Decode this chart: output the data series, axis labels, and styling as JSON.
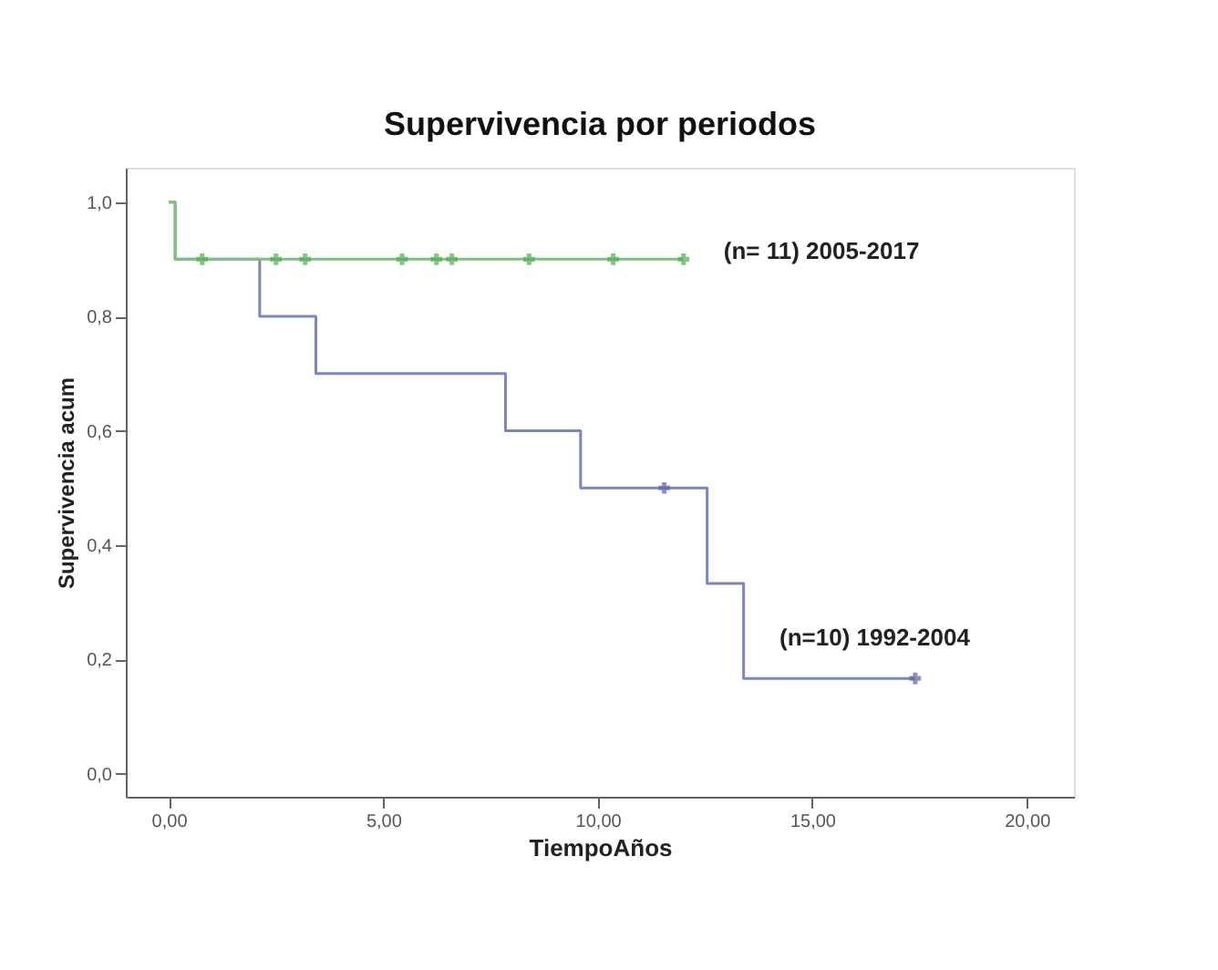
{
  "chart_data": {
    "type": "step",
    "title": "Supervivencia por periodos",
    "xlabel": "TiempoAños",
    "ylabel": "Supervivencia acum",
    "xlim": [
      -1,
      21.1
    ],
    "ylim": [
      -0.04,
      1.06
    ],
    "xticks": [
      {
        "value": 0,
        "label": "0,00"
      },
      {
        "value": 5,
        "label": "5,00"
      },
      {
        "value": 10,
        "label": "10,00"
      },
      {
        "value": 15,
        "label": "15,00"
      },
      {
        "value": 20,
        "label": "20,00"
      }
    ],
    "yticks": [
      {
        "value": 0,
        "label": "0,0"
      },
      {
        "value": 0.2,
        "label": "0,2"
      },
      {
        "value": 0.4,
        "label": "0,4"
      },
      {
        "value": 0.6,
        "label": "0,6"
      },
      {
        "value": 0.8,
        "label": "0,8"
      },
      {
        "value": 1.0,
        "label": "1,0"
      }
    ],
    "grid": false,
    "series": [
      {
        "name": "(n=10) 1992-2004",
        "color": "#7b86bf",
        "marker": "none",
        "x": [
          0,
          0.15,
          2.12,
          3.43,
          7.85,
          9.6,
          12.55,
          13.4,
          17.4
        ],
        "values": [
          1.0,
          0.9,
          0.8,
          0.7,
          0.6,
          0.5,
          0.333,
          0.167,
          0.167
        ]
      },
      {
        "type": "scatter",
        "color": "#5a64a8",
        "marker": "cross",
        "x": [
          11.55,
          17.4
        ],
        "values": [
          0.5,
          0.167
        ]
      },
      {
        "name": "(n= 11) 2005-2017",
        "color": "#7cc47c",
        "marker": "none",
        "x": [
          0,
          0.15,
          12.0
        ],
        "values": [
          1.0,
          0.9,
          0.9
        ]
      },
      {
        "type": "scatter",
        "color": "#4fae4f",
        "marker": "cross",
        "x": [
          0.78,
          2.5,
          3.18,
          5.44,
          6.24,
          6.6,
          8.4,
          10.36,
          12.0
        ],
        "values": [
          0.9,
          0.9,
          0.9,
          0.9,
          0.9,
          0.9,
          0.9,
          0.9,
          0.9
        ]
      }
    ]
  }
}
